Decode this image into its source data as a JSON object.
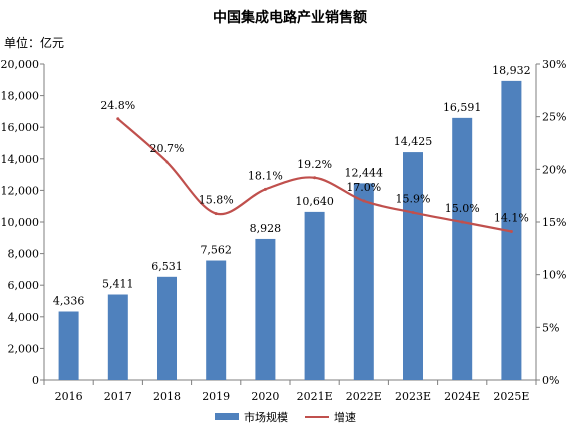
{
  "chart_data": {
    "type": "bar",
    "title": "中国集成电路产业销售额",
    "unit_label": "单位：亿元",
    "categories": [
      "2016",
      "2017",
      "2018",
      "2019",
      "2020",
      "2021E",
      "2022E",
      "2023E",
      "2024E",
      "2025E"
    ],
    "series": [
      {
        "name": "市场规模",
        "type": "bar",
        "axis": "left",
        "color": "#4F81BD",
        "values": [
          4336,
          5411,
          6531,
          7562,
          8928,
          10640,
          12444,
          14425,
          16591,
          18932
        ],
        "labels": [
          "4,336",
          "5,411",
          "6,531",
          "7,562",
          "8,928",
          "10,640",
          "12,444",
          "14,425",
          "16,591",
          "18,932"
        ]
      },
      {
        "name": "增速",
        "type": "line",
        "axis": "right",
        "color": "#C0504D",
        "values": [
          null,
          24.8,
          20.7,
          15.8,
          18.1,
          19.2,
          17.0,
          15.9,
          15.0,
          14.1
        ],
        "labels": [
          "",
          "24.8%",
          "20.7%",
          "15.8%",
          "18.1%",
          "19.2%",
          "17.0%",
          "15.9%",
          "15.0%",
          "14.1%"
        ]
      }
    ],
    "y_left": {
      "range": [
        0,
        20000
      ],
      "ticks": [
        0,
        2000,
        4000,
        6000,
        8000,
        10000,
        12000,
        14000,
        16000,
        18000,
        20000
      ],
      "tick_labels": [
        "0",
        "2,000",
        "4,000",
        "6,000",
        "8,000",
        "10,000",
        "12,000",
        "14,000",
        "16,000",
        "18,000",
        "20,000"
      ]
    },
    "y_right": {
      "range": [
        0,
        30
      ],
      "ticks": [
        0,
        5,
        10,
        15,
        20,
        25,
        30
      ],
      "tick_labels": [
        "0%",
        "5%",
        "10%",
        "15%",
        "20%",
        "25%",
        "30%"
      ]
    },
    "grid": false,
    "legend_position": "bottom"
  }
}
